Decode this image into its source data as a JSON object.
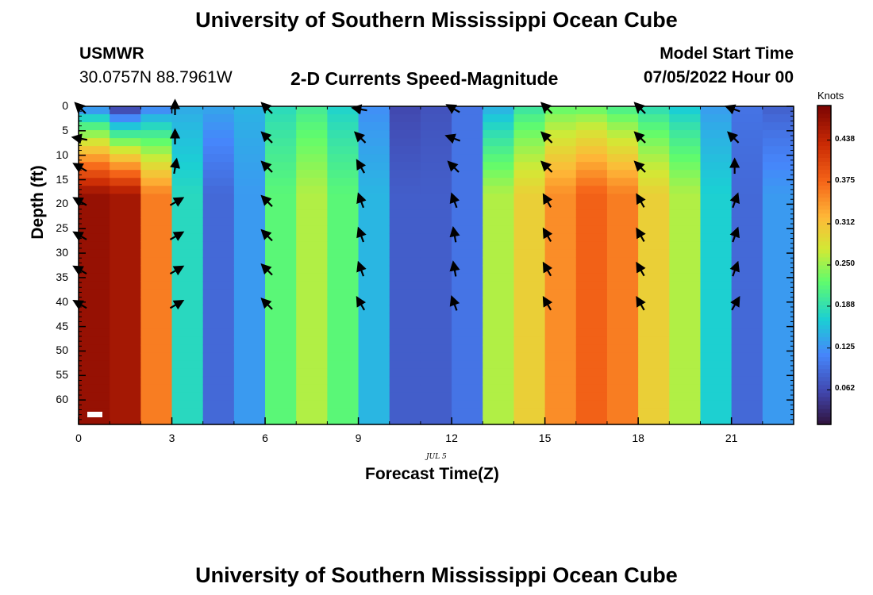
{
  "header": {
    "title": "University of Southern Mississippi Ocean Cube",
    "station": "USMWR",
    "coords": "30.0757N  88.7961W",
    "subtitle": "2-D Currents Speed-Magnitude",
    "model_start_label": "Model Start Time",
    "model_start_value": "07/05/2022 Hour 00",
    "date_label": "JUL 5",
    "footer_title": "University of Southern Mississippi Ocean Cube"
  },
  "chart_data": {
    "type": "heatmap",
    "title": "2-D Currents Speed-Magnitude",
    "xlabel": "Forecast Time(Z)",
    "ylabel": "Depth (ft)",
    "xlim": [
      0,
      23
    ],
    "ylim": [
      65,
      0
    ],
    "x_ticks": [
      0,
      3,
      6,
      9,
      12,
      15,
      18,
      21
    ],
    "y_ticks": [
      0,
      5,
      10,
      15,
      20,
      25,
      30,
      35,
      40,
      45,
      50,
      55,
      60
    ],
    "colorbar": {
      "label": "Knots",
      "range": [
        0.01,
        0.49
      ],
      "ticks": [
        "0.062",
        "0.125",
        "0.188",
        "0.250",
        "0.312",
        "0.375",
        "0.438"
      ]
    },
    "speed_profile_by_hour": [
      {
        "hour": 0,
        "surface": 0.1,
        "deep": 0.47
      },
      {
        "hour": 1,
        "surface": 0.03,
        "deep": 0.46
      },
      {
        "hour": 2,
        "surface": 0.1,
        "deep": 0.36
      },
      {
        "hour": 3,
        "surface": 0.14,
        "deep": 0.18
      },
      {
        "hour": 4,
        "surface": 0.14,
        "deep": 0.09
      },
      {
        "hour": 5,
        "surface": 0.15,
        "deep": 0.13
      },
      {
        "hour": 6,
        "surface": 0.18,
        "deep": 0.22
      },
      {
        "hour": 7,
        "surface": 0.2,
        "deep": 0.26
      },
      {
        "hour": 8,
        "surface": 0.17,
        "deep": 0.22
      },
      {
        "hour": 9,
        "surface": 0.12,
        "deep": 0.15
      },
      {
        "hour": 10,
        "surface": 0.06,
        "deep": 0.08
      },
      {
        "hour": 11,
        "surface": 0.07,
        "deep": 0.08
      },
      {
        "hour": 12,
        "surface": 0.1,
        "deep": 0.1
      },
      {
        "hour": 13,
        "surface": 0.14,
        "deep": 0.26
      },
      {
        "hour": 14,
        "surface": 0.19,
        "deep": 0.3
      },
      {
        "hour": 15,
        "surface": 0.22,
        "deep": 0.35
      },
      {
        "hour": 16,
        "surface": 0.22,
        "deep": 0.38
      },
      {
        "hour": 17,
        "surface": 0.2,
        "deep": 0.36
      },
      {
        "hour": 18,
        "surface": 0.18,
        "deep": 0.3
      },
      {
        "hour": 19,
        "surface": 0.16,
        "deep": 0.26
      },
      {
        "hour": 20,
        "surface": 0.13,
        "deep": 0.17
      },
      {
        "hour": 21,
        "surface": 0.1,
        "deep": 0.09
      },
      {
        "hour": 22,
        "surface": 0.08,
        "deep": 0.13
      }
    ],
    "vector_hours": [
      0,
      3,
      6,
      9,
      12,
      15,
      18,
      21
    ],
    "vector_depths_ft": [
      0,
      6,
      12,
      19,
      26,
      33,
      40
    ],
    "vector_direction_deg": [
      [
        -45,
        -80,
        -60,
        -60,
        -60,
        -60,
        -60
      ],
      [
        0,
        0,
        10,
        60,
        60,
        60,
        60
      ],
      [
        -45,
        -45,
        -45,
        -45,
        -45,
        -45,
        -45
      ],
      [
        -80,
        -45,
        -30,
        -20,
        -20,
        -20,
        -30
      ],
      [
        -60,
        -70,
        -45,
        -20,
        -10,
        -10,
        -20
      ],
      [
        -45,
        -45,
        -45,
        -30,
        -30,
        -30,
        -30
      ],
      [
        -45,
        -45,
        -45,
        -30,
        -30,
        -30,
        -30
      ],
      [
        -70,
        -45,
        0,
        20,
        20,
        20,
        30
      ]
    ]
  }
}
